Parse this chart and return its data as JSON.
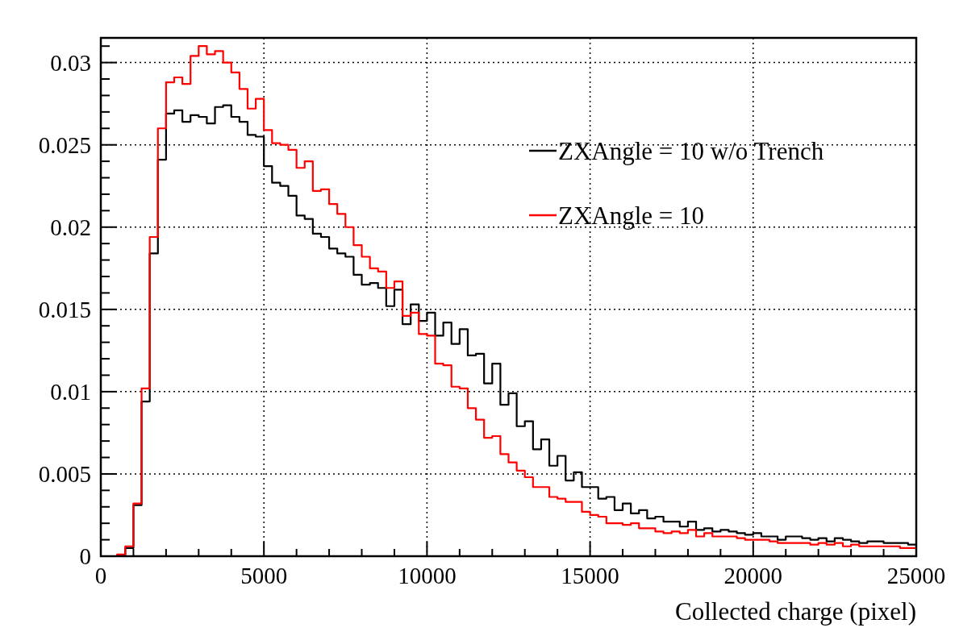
{
  "chart_data": {
    "type": "histogram",
    "xlabel": "Collected charge (pixel)",
    "bins": [
      0,
      250,
      500,
      750,
      1000,
      1250,
      1500,
      1750,
      2000,
      2250,
      2500,
      2750,
      3000,
      3250,
      3500,
      3750,
      4000,
      4250,
      4500,
      4750,
      5000,
      5250,
      5500,
      5750,
      6000,
      6250,
      6500,
      6750,
      7000,
      7250,
      7500,
      7750,
      8000,
      8250,
      8500,
      8750,
      9000,
      9250,
      9500,
      9750,
      10000,
      10250,
      10500,
      10750,
      11000,
      11250,
      11500,
      11750,
      12000,
      12250,
      12500,
      12750,
      13000,
      13250,
      13500,
      13750,
      14000,
      14250,
      14500,
      14750,
      15000,
      15250,
      15500,
      15750,
      16000,
      16250,
      16500,
      16750,
      17000,
      17250,
      17500,
      17750,
      18000,
      18250,
      18500,
      18750,
      19000,
      19250,
      19500,
      19750,
      20000,
      20250,
      20500,
      20750,
      21000,
      21250,
      21500,
      21750,
      22000,
      22250,
      22500,
      22750,
      23000,
      23250,
      23500,
      23750,
      24000,
      24250,
      24500,
      24750,
      25000
    ],
    "series": [
      {
        "name": "ZXAngle = 10 w/o Trench",
        "color": "#000000",
        "values": [
          0,
          0,
          0,
          0.0005,
          0.0031,
          0.0094,
          0.0184,
          0.0241,
          0.0269,
          0.0271,
          0.0264,
          0.0268,
          0.0267,
          0.0263,
          0.0273,
          0.0274,
          0.0267,
          0.0264,
          0.0256,
          0.0255,
          0.0237,
          0.0227,
          0.0225,
          0.0219,
          0.0207,
          0.0205,
          0.0196,
          0.0194,
          0.0187,
          0.0184,
          0.0182,
          0.0171,
          0.0165,
          0.0166,
          0.0163,
          0.0152,
          0.0162,
          0.0141,
          0.0153,
          0.0143,
          0.0148,
          0.0134,
          0.0142,
          0.0129,
          0.0138,
          0.0122,
          0.0123,
          0.0105,
          0.0117,
          0.0092,
          0.0099,
          0.0079,
          0.0082,
          0.0065,
          0.0071,
          0.0055,
          0.0061,
          0.0046,
          0.0051,
          0.0042,
          0.0042,
          0.0035,
          0.0036,
          0.0028,
          0.0032,
          0.0026,
          0.0028,
          0.0023,
          0.0024,
          0.0021,
          0.0021,
          0.0018,
          0.0021,
          0.0016,
          0.0017,
          0.0015,
          0.0016,
          0.0015,
          0.0014,
          0.0013,
          0.0014,
          0.0012,
          0.0012,
          0.001,
          0.0012,
          0.0012,
          0.0011,
          0.001,
          0.0011,
          0.0009,
          0.0011,
          0.001,
          0.0009,
          0.0008,
          0.0009,
          0.0009,
          0.0008,
          0.0008,
          0.0008,
          0.0007
        ]
      },
      {
        "name": "ZXAngle = 10",
        "color": "#ff0000",
        "values": [
          0,
          0,
          0.0001,
          0.0006,
          0.0032,
          0.0102,
          0.0194,
          0.026,
          0.0288,
          0.0291,
          0.0287,
          0.0304,
          0.031,
          0.0305,
          0.0307,
          0.03,
          0.0294,
          0.0284,
          0.0272,
          0.0278,
          0.0259,
          0.0251,
          0.025,
          0.0247,
          0.0236,
          0.024,
          0.0222,
          0.0223,
          0.0214,
          0.0208,
          0.02,
          0.0189,
          0.0182,
          0.0175,
          0.0173,
          0.0163,
          0.0167,
          0.0146,
          0.0148,
          0.0135,
          0.0134,
          0.0117,
          0.0116,
          0.0103,
          0.0102,
          0.009,
          0.0083,
          0.0072,
          0.0073,
          0.0062,
          0.0057,
          0.0052,
          0.0048,
          0.0042,
          0.0042,
          0.0036,
          0.0035,
          0.0033,
          0.0033,
          0.0027,
          0.0025,
          0.0024,
          0.002,
          0.002,
          0.0019,
          0.002,
          0.0017,
          0.0017,
          0.0015,
          0.0014,
          0.0015,
          0.0014,
          0.0016,
          0.0012,
          0.0014,
          0.0012,
          0.0012,
          0.0012,
          0.0011,
          0.001,
          0.001,
          0.001,
          0.0009,
          0.0008,
          0.0008,
          0.0008,
          0.0008,
          0.0007,
          0.0008,
          0.0007,
          0.0008,
          0.0006,
          0.0007,
          0.0006,
          0.0006,
          0.0006,
          0.0006,
          0.0006,
          0.0005,
          0.0005
        ]
      }
    ],
    "xlim": [
      0,
      25000
    ],
    "xticks": [
      0,
      {
        "value": 1000,
        "label": null
      },
      {
        "value": 2000,
        "label": null
      },
      {
        "value": 3000,
        "label": null
      },
      {
        "value": 4000,
        "label": null
      },
      5000,
      {
        "value": 6000,
        "label": null
      },
      {
        "value": 7000,
        "label": null
      },
      {
        "value": 8000,
        "label": null
      },
      {
        "value": 9000,
        "label": null
      },
      10000,
      {
        "value": 11000,
        "label": null
      },
      {
        "value": 12000,
        "label": null
      },
      {
        "value": 13000,
        "label": null
      },
      {
        "value": 14000,
        "label": null
      },
      15000,
      {
        "value": 16000,
        "label": null
      },
      {
        "value": 17000,
        "label": null
      },
      {
        "value": 18000,
        "label": null
      },
      {
        "value": 19000,
        "label": null
      },
      20000,
      {
        "value": 21000,
        "label": null
      },
      {
        "value": 22000,
        "label": null
      },
      {
        "value": 23000,
        "label": null
      },
      {
        "value": 24000,
        "label": null
      },
      25000
    ],
    "ylim": [
      0,
      0.0315
    ],
    "yticks": [
      0,
      {
        "value": 0.001,
        "label": null
      },
      {
        "value": 0.002,
        "label": null
      },
      {
        "value": 0.003,
        "label": null
      },
      {
        "value": 0.004,
        "label": null
      },
      0.005,
      {
        "value": 0.006,
        "label": null
      },
      {
        "value": 0.007,
        "label": null
      },
      {
        "value": 0.008,
        "label": null
      },
      {
        "value": 0.009,
        "label": null
      },
      0.01,
      {
        "value": 0.011,
        "label": null
      },
      {
        "value": 0.012,
        "label": null
      },
      {
        "value": 0.013,
        "label": null
      },
      {
        "value": 0.014,
        "label": null
      },
      0.015,
      {
        "value": 0.016,
        "label": null
      },
      {
        "value": 0.017,
        "label": null
      },
      {
        "value": 0.018,
        "label": null
      },
      {
        "value": 0.019,
        "label": null
      },
      0.02,
      {
        "value": 0.021,
        "label": null
      },
      {
        "value": 0.022,
        "label": null
      },
      {
        "value": 0.023,
        "label": null
      },
      {
        "value": 0.024,
        "label": null
      },
      0.025,
      {
        "value": 0.026,
        "label": null
      },
      {
        "value": 0.027,
        "label": null
      },
      {
        "value": 0.028,
        "label": null
      },
      {
        "value": 0.029,
        "label": null
      },
      0.03,
      {
        "value": 0.031,
        "label": null
      }
    ],
    "grid": true,
    "legend": "top right"
  }
}
